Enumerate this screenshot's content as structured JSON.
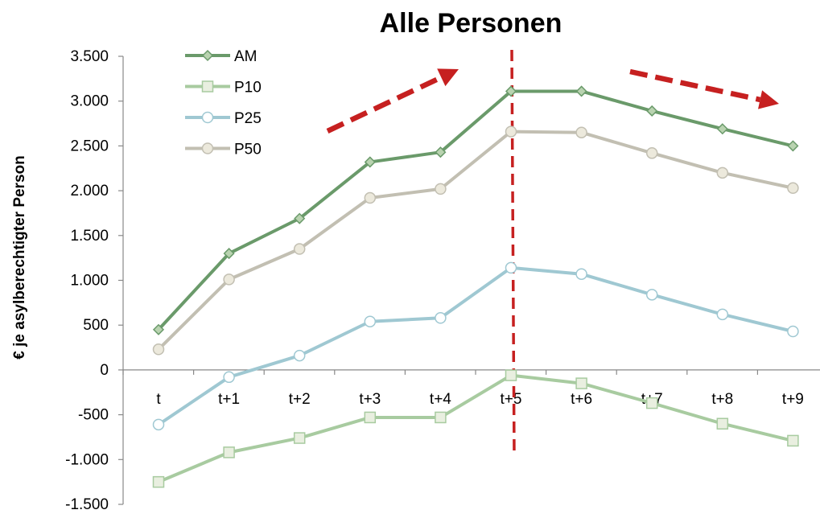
{
  "chart_data": {
    "type": "line",
    "title": "Alle Personen",
    "xlabel": "",
    "ylabel": "€ je asylberechtigter Person",
    "categories": [
      "t",
      "t+1",
      "t+2",
      "t+3",
      "t+4",
      "t+5",
      "t+6",
      "t+7",
      "t+8",
      "t+9"
    ],
    "ylim": [
      -1500,
      3500
    ],
    "yticks": [
      3500,
      3000,
      2500,
      2000,
      1500,
      1000,
      500,
      0,
      -500,
      -1000,
      -1500
    ],
    "ytick_labels": [
      "3.500",
      "3.000",
      "2.500",
      "2.000",
      "1.500",
      "1.000",
      "500",
      "0",
      "-500",
      "-1.000",
      "-1.500"
    ],
    "grid": false,
    "legend_position": "top-left",
    "series": [
      {
        "name": "AM",
        "marker": "diamond",
        "color": "#6a9a6a",
        "fill": "#b9d3b0",
        "values": [
          450,
          1300,
          1690,
          2320,
          2430,
          3110,
          3110,
          2890,
          2690,
          2500
        ]
      },
      {
        "name": "P10",
        "marker": "square",
        "color": "#a8cba0",
        "fill": "#e9efe0",
        "values": [
          -1250,
          -920,
          -760,
          -530,
          -530,
          -60,
          -150,
          -370,
          -600,
          -790
        ]
      },
      {
        "name": "P25",
        "marker": "circle",
        "color": "#9fc8d2",
        "fill": "#ffffff",
        "values": [
          -610,
          -80,
          160,
          540,
          580,
          1140,
          1070,
          840,
          620,
          430
        ]
      },
      {
        "name": "P50",
        "marker": "circle",
        "color": "#c2bfb2",
        "fill": "#ece9dc",
        "values": [
          230,
          1010,
          1350,
          1920,
          2020,
          2660,
          2650,
          2420,
          2200,
          2030
        ]
      }
    ],
    "annotations": {
      "vertical_line_at": "t+5",
      "arrow_color": "#c62020",
      "arrows": [
        "rising",
        "falling"
      ]
    }
  }
}
